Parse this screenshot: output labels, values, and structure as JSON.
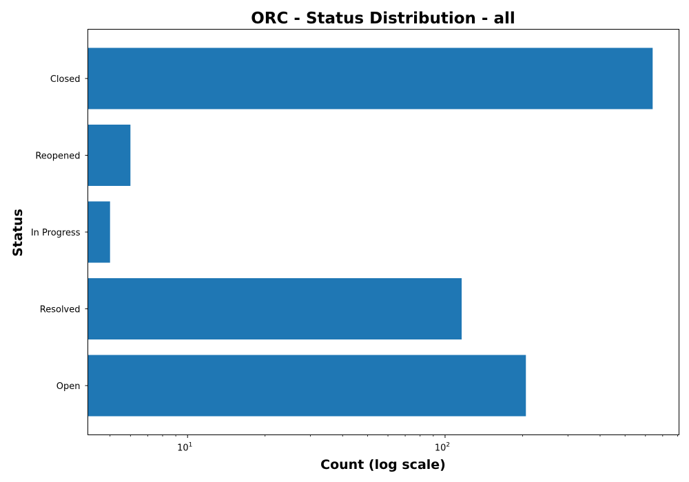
{
  "chart_data": {
    "type": "bar",
    "orientation": "horizontal",
    "title": "ORC - Status Distribution - all",
    "xlabel": "Count (log scale)",
    "ylabel": "Status",
    "x_scale": "log",
    "xlim": [
      4.1,
      810
    ],
    "grid": false,
    "bar_color": "#1f77b4",
    "categories": [
      "Open",
      "Resolved",
      "In Progress",
      "Reopened",
      "Closed"
    ],
    "values": [
      206,
      116,
      5,
      6,
      640
    ],
    "x_major_ticks": [
      {
        "value": 10,
        "base": "10",
        "exponent": "1"
      },
      {
        "value": 100,
        "base": "10",
        "exponent": "2"
      }
    ]
  }
}
